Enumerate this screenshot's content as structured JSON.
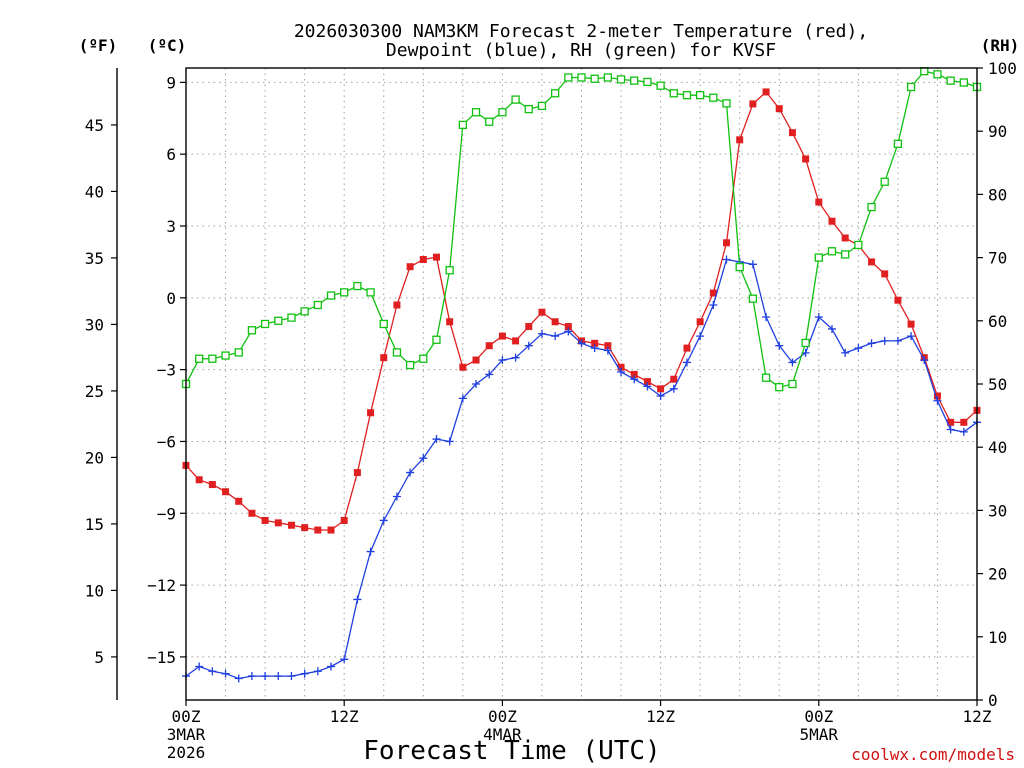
{
  "chart_data": {
    "type": "line",
    "title_line1": "2026030300 NAM3KM Forecast 2-meter Temperature (red),",
    "title_line2": "Dewpoint (blue), RH (green) for KVSF",
    "xlabel": "Forecast Time (UTC)",
    "credit": "coolwx.com/models",
    "units": {
      "fahrenheit": "(ºF)",
      "celsius": "(ºC)",
      "rh": "(RH)"
    },
    "colors": {
      "temperature": "#e02020",
      "dewpoint": "#1f3fe0",
      "rh": "#10c010",
      "grid": "#a0a0a0"
    },
    "xlim_hours": [
      0,
      60
    ],
    "ylim_celsius": [
      -16.8,
      9.6
    ],
    "ylim_rh": [
      0,
      100
    ],
    "x_ticks": [
      {
        "hour": 0,
        "label": "00Z",
        "sub1": "3MAR",
        "sub2": "2026"
      },
      {
        "hour": 12,
        "label": "12Z",
        "sub1": "",
        "sub2": ""
      },
      {
        "hour": 24,
        "label": "00Z",
        "sub1": "4MAR",
        "sub2": ""
      },
      {
        "hour": 36,
        "label": "12Z",
        "sub1": "",
        "sub2": ""
      },
      {
        "hour": 48,
        "label": "00Z",
        "sub1": "5MAR",
        "sub2": ""
      },
      {
        "hour": 60,
        "label": "12Z",
        "sub1": "",
        "sub2": ""
      }
    ],
    "celsius_ticks": [
      {
        "v": 9,
        "label": "9"
      },
      {
        "v": 6,
        "label": "6"
      },
      {
        "v": 3,
        "label": "3"
      },
      {
        "v": 0,
        "label": "0"
      },
      {
        "v": -3,
        "label": "−3"
      },
      {
        "v": -6,
        "label": "−6"
      },
      {
        "v": -9,
        "label": "−9"
      },
      {
        "v": -12,
        "label": "−12"
      },
      {
        "v": -15,
        "label": "−15"
      }
    ],
    "fahrenheit_ticks": [
      {
        "v": 45,
        "label": "45"
      },
      {
        "v": 40,
        "label": "40"
      },
      {
        "v": 35,
        "label": "35"
      },
      {
        "v": 30,
        "label": "30"
      },
      {
        "v": 25,
        "label": "25"
      },
      {
        "v": 20,
        "label": "20"
      },
      {
        "v": 15,
        "label": "15"
      },
      {
        "v": 10,
        "label": "10"
      },
      {
        "v": 5,
        "label": "5"
      }
    ],
    "rh_ticks": [
      {
        "v": 100,
        "label": "100"
      },
      {
        "v": 90,
        "label": "90"
      },
      {
        "v": 80,
        "label": "80"
      },
      {
        "v": 70,
        "label": "70"
      },
      {
        "v": 60,
        "label": "60"
      },
      {
        "v": 50,
        "label": "50"
      },
      {
        "v": 40,
        "label": "40"
      },
      {
        "v": 30,
        "label": "30"
      },
      {
        "v": 20,
        "label": "20"
      },
      {
        "v": 10,
        "label": "10"
      },
      {
        "v": 0,
        "label": "0"
      }
    ],
    "series": [
      {
        "name": "Temperature",
        "unit": "C",
        "marker": "filled-square",
        "hours": [
          0,
          1,
          2,
          3,
          4,
          5,
          6,
          7,
          8,
          9,
          10,
          11,
          12,
          13,
          14,
          15,
          16,
          17,
          18,
          19,
          20,
          21,
          22,
          23,
          24,
          25,
          26,
          27,
          28,
          29,
          30,
          31,
          32,
          33,
          34,
          35,
          36,
          37,
          38,
          39,
          40,
          41,
          42,
          43,
          44,
          45,
          46,
          47,
          48,
          49,
          50,
          51,
          52,
          53,
          54,
          55,
          56,
          57,
          58,
          59,
          60
        ],
        "values": [
          -7.0,
          -7.6,
          -7.8,
          -8.1,
          -8.5,
          -9.0,
          -9.3,
          -9.4,
          -9.5,
          -9.6,
          -9.7,
          -9.7,
          -9.3,
          -7.3,
          -4.8,
          -2.5,
          -0.3,
          1.3,
          1.6,
          1.7,
          -1.0,
          -2.9,
          -2.6,
          -2.0,
          -1.6,
          -1.8,
          -1.2,
          -0.6,
          -1.0,
          -1.2,
          -1.8,
          -1.9,
          -2.0,
          -2.9,
          -3.2,
          -3.5,
          -3.8,
          -3.4,
          -2.1,
          -1.0,
          0.2,
          2.3,
          6.6,
          8.1,
          8.6,
          7.9,
          6.9,
          5.8,
          4.0,
          3.2,
          2.5,
          2.2,
          1.5,
          1.0,
          -0.1,
          -1.1,
          -2.5,
          -4.1,
          -5.2,
          -5.2,
          -4.7
        ]
      },
      {
        "name": "Dewpoint",
        "unit": "C",
        "marker": "plus",
        "hours": [
          0,
          1,
          2,
          3,
          4,
          5,
          6,
          7,
          8,
          9,
          10,
          11,
          12,
          13,
          14,
          15,
          16,
          17,
          18,
          19,
          20,
          21,
          22,
          23,
          24,
          25,
          26,
          27,
          28,
          29,
          30,
          31,
          32,
          33,
          34,
          35,
          36,
          37,
          38,
          39,
          40,
          41,
          42,
          43,
          44,
          45,
          46,
          47,
          48,
          49,
          50,
          51,
          52,
          53,
          54,
          55,
          56,
          57,
          58,
          59,
          60
        ],
        "values": [
          -15.8,
          -15.4,
          -15.6,
          -15.7,
          -15.9,
          -15.8,
          -15.8,
          -15.8,
          -15.8,
          -15.7,
          -15.6,
          -15.4,
          -15.1,
          -12.6,
          -10.6,
          -9.3,
          -8.3,
          -7.3,
          -6.7,
          -5.9,
          -6.0,
          -4.2,
          -3.6,
          -3.2,
          -2.6,
          -2.5,
          -2.0,
          -1.5,
          -1.6,
          -1.4,
          -1.9,
          -2.1,
          -2.2,
          -3.1,
          -3.4,
          -3.7,
          -4.1,
          -3.8,
          -2.7,
          -1.6,
          -0.3,
          1.6,
          1.5,
          1.4,
          -0.8,
          -2.0,
          -2.7,
          -2.3,
          -0.8,
          -1.3,
          -2.3,
          -2.1,
          -1.9,
          -1.8,
          -1.8,
          -1.6,
          -2.6,
          -4.3,
          -5.5,
          -5.6,
          -5.2
        ]
      },
      {
        "name": "RH",
        "unit": "%",
        "marker": "open-square",
        "hours": [
          0,
          1,
          2,
          3,
          4,
          5,
          6,
          7,
          8,
          9,
          10,
          11,
          12,
          13,
          14,
          15,
          16,
          17,
          18,
          19,
          20,
          21,
          22,
          23,
          24,
          25,
          26,
          27,
          28,
          29,
          30,
          31,
          32,
          33,
          34,
          35,
          36,
          37,
          38,
          39,
          40,
          41,
          42,
          43,
          44,
          45,
          46,
          47,
          48,
          49,
          50,
          51,
          52,
          53,
          54,
          55,
          56,
          57,
          58,
          59,
          60
        ],
        "values": [
          50,
          54,
          54,
          54.5,
          55,
          58.5,
          59.5,
          60,
          60.5,
          61.5,
          62.5,
          64,
          64.5,
          65.5,
          64.5,
          59.5,
          55,
          53,
          54,
          57,
          68,
          91,
          93,
          91.5,
          93,
          95,
          93.5,
          94,
          96,
          98.5,
          98.5,
          98.3,
          98.5,
          98.2,
          98,
          97.8,
          97.2,
          96,
          95.7,
          95.7,
          95.3,
          94.4,
          68.5,
          63.5,
          51,
          49.5,
          50,
          56.5,
          70,
          71,
          70.5,
          72,
          78,
          82,
          88,
          97,
          99.5,
          99,
          98,
          97.7,
          97
        ]
      }
    ]
  }
}
